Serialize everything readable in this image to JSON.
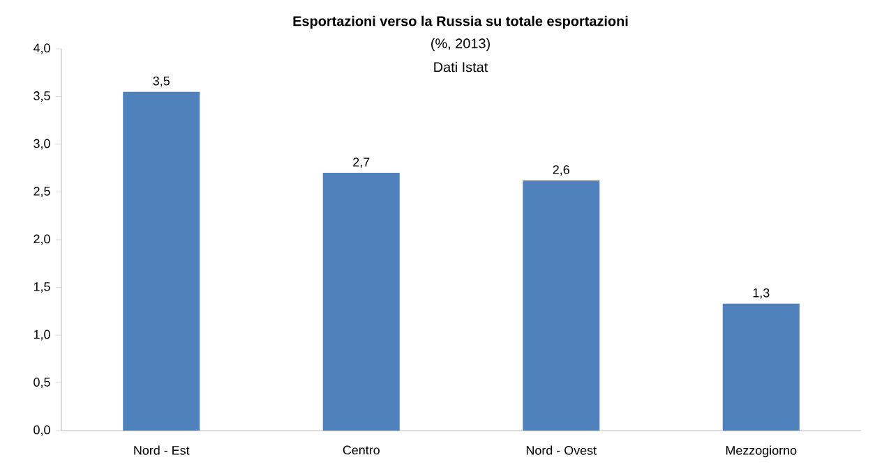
{
  "chart_data": {
    "type": "bar",
    "title": "Esportazioni verso la Russia su totale esportazioni",
    "subtitle": "(%, 2013)",
    "annotations": [
      "Dati Istat"
    ],
    "categories": [
      "Nord - Est",
      "Centro",
      "Nord - Ovest",
      "Mezzogiorno"
    ],
    "values": [
      3.55,
      2.7,
      2.62,
      1.33
    ],
    "value_labels": [
      "3,5",
      "2,7",
      "2,6",
      "1,3"
    ],
    "color": "#4f81bd",
    "ylim": [
      0,
      4
    ],
    "yticks": [
      {
        "value": 0,
        "label": "0,0"
      },
      {
        "value": 0.5,
        "label": "0,5"
      },
      {
        "value": 1,
        "label": "1,0"
      },
      {
        "value": 1.5,
        "label": "1,5"
      },
      {
        "value": 2,
        "label": "2,0"
      },
      {
        "value": 2.5,
        "label": "2,5"
      },
      {
        "value": 3,
        "label": "3,0"
      },
      {
        "value": 3.5,
        "label": "3,5"
      },
      {
        "value": 4,
        "label": "4,0"
      }
    ],
    "grid": false
  }
}
